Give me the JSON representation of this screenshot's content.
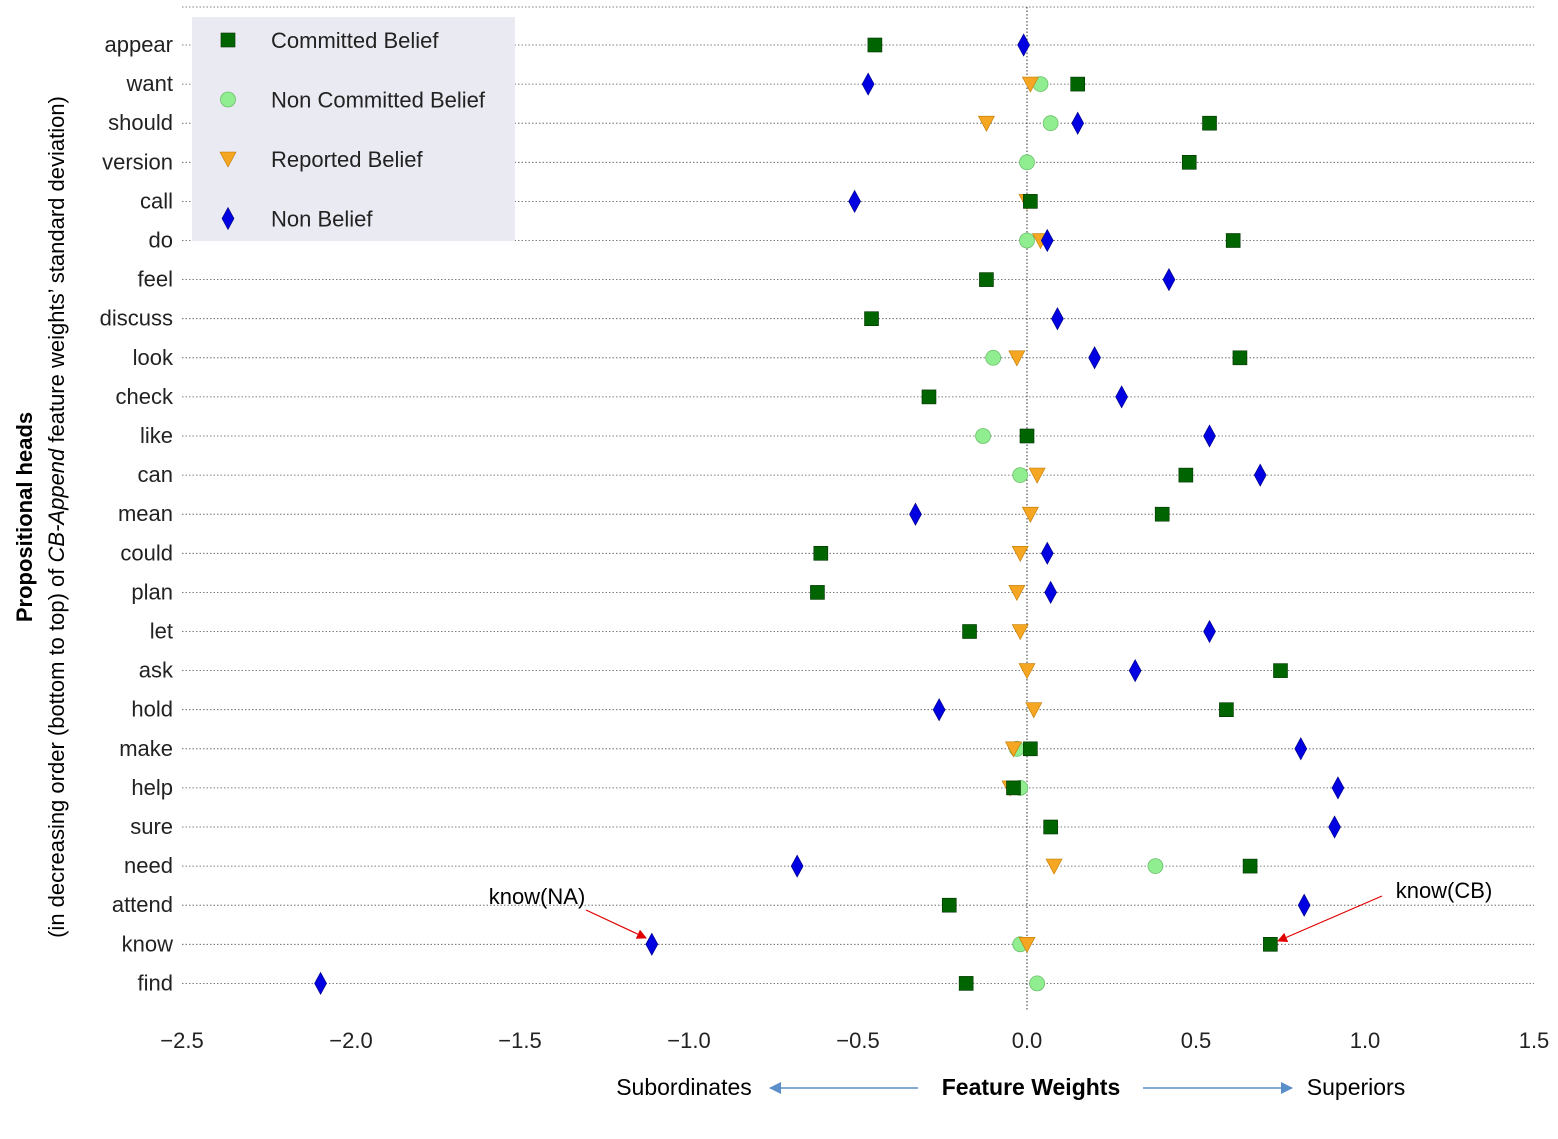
{
  "chart_data": {
    "type": "scatter",
    "ylabel_bold": "Propositional heads",
    "ylabel_line2_pre": "(in decreasing order (bottom to top) of ",
    "ylabel_line2_italic": "CB-Append",
    "ylabel_line2_post": " feature weights’ standard deviation)",
    "xlabel": "Feature Weights",
    "xlabel_left": "Subordinates",
    "xlabel_right": "Superiors",
    "xlim": [
      -2.5,
      1.5
    ],
    "xticks": [
      -2.5,
      -2.0,
      -1.5,
      -1.0,
      -0.5,
      0.0,
      0.5,
      1.0,
      1.5
    ],
    "xtick_labels": [
      "−2.5",
      "−2.0",
      "−1.5",
      "−1.0",
      "−0.5",
      "0.0",
      "0.5",
      "1.0",
      "1.5"
    ],
    "grid": "horizontal dotted",
    "zero_line": "vertical dotted at 0.0",
    "legend_position": "top-left",
    "categories": [
      "appear",
      "want",
      "should",
      "version",
      "call",
      "do",
      "feel",
      "discuss",
      "look",
      "check",
      "like",
      "can",
      "mean",
      "could",
      "plan",
      "let",
      "ask",
      "hold",
      "make",
      "help",
      "sure",
      "need",
      "attend",
      "know",
      "find"
    ],
    "series": [
      {
        "name": "Committed Belief",
        "marker": "square",
        "color": "#006400",
        "values": [
          -0.45,
          0.15,
          0.54,
          0.48,
          0.01,
          0.61,
          -0.12,
          -0.46,
          0.63,
          -0.29,
          0.0,
          0.47,
          0.4,
          -0.61,
          -0.62,
          -0.17,
          0.75,
          0.59,
          0.01,
          -0.04,
          0.07,
          0.66,
          -0.23,
          0.72,
          -0.18
        ]
      },
      {
        "name": "Non Committed Belief",
        "marker": "circle",
        "color": "#90ee90",
        "values": [
          null,
          0.04,
          0.07,
          0.0,
          null,
          0.0,
          null,
          null,
          -0.1,
          null,
          -0.13,
          -0.02,
          null,
          null,
          null,
          null,
          null,
          null,
          -0.03,
          -0.02,
          null,
          0.38,
          null,
          -0.02,
          0.03
        ]
      },
      {
        "name": "Reported Belief",
        "marker": "triangle-down",
        "color": "#f5a623",
        "values": [
          null,
          0.01,
          -0.12,
          null,
          0.0,
          0.04,
          null,
          null,
          -0.03,
          null,
          null,
          0.03,
          0.01,
          -0.02,
          -0.03,
          -0.02,
          0.0,
          0.02,
          -0.04,
          -0.05,
          null,
          0.08,
          null,
          0.0,
          null
        ]
      },
      {
        "name": "Non Belief",
        "marker": "diamond",
        "color": "#0000e0",
        "values": [
          -0.01,
          -0.47,
          0.15,
          null,
          -0.51,
          0.06,
          0.42,
          0.09,
          0.2,
          0.28,
          0.54,
          0.69,
          -0.33,
          0.06,
          0.07,
          0.54,
          0.32,
          -0.26,
          0.81,
          0.92,
          0.91,
          -0.68,
          0.82,
          -1.11,
          -2.09
        ]
      }
    ],
    "annotations": [
      {
        "text": "know(NA)",
        "target_category": "know",
        "target_x": -1.11
      },
      {
        "text": "know(CB)",
        "target_category": "know",
        "target_x": 0.72
      }
    ]
  }
}
